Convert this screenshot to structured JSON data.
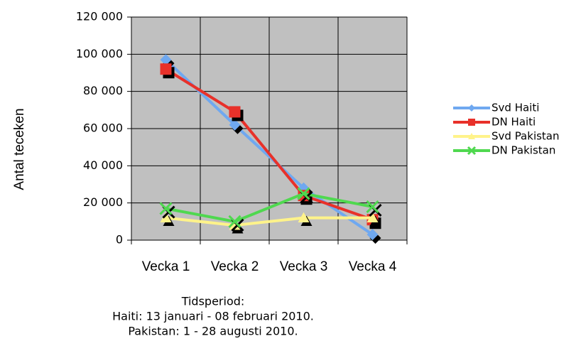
{
  "chart_data": {
    "type": "line",
    "ylabel": "Antal teceken",
    "xlabel": [
      "Tidsperiod:",
      "Haiti: 13 januari - 08 februari 2010.",
      "Pakistan: 1 - 28 augusti 2010."
    ],
    "categories": [
      "Vecka 1",
      "Vecka 2",
      "Vecka 3",
      "Vecka 4"
    ],
    "series": [
      {
        "name": "Svd Haiti",
        "color": "#6fa8f0",
        "marker": "diamond",
        "values": [
          97000,
          62000,
          28000,
          3000
        ]
      },
      {
        "name": "DN Haiti",
        "color": "#e8312a",
        "marker": "square",
        "values": [
          92000,
          69000,
          24000,
          11000
        ]
      },
      {
        "name": "Svd Pakistan",
        "color": "#fff38a",
        "marker": "triangle",
        "values": [
          12000,
          8000,
          12000,
          12000
        ]
      },
      {
        "name": "DN Pakistan",
        "color": "#4fd84f",
        "marker": "x",
        "values": [
          17000,
          10000,
          25000,
          18000
        ]
      }
    ],
    "ylim": [
      0,
      120000
    ],
    "yticks": [
      0,
      {
        "value": 20000,
        "label": "20 000"
      },
      {
        "value": 40000,
        "label": "40 000"
      },
      {
        "value": 60000,
        "label": "60 000"
      },
      {
        "value": 80000,
        "label": "80 000"
      },
      {
        "value": 100000,
        "label": "100 000"
      },
      {
        "value": 120000,
        "label": "120 000"
      }
    ],
    "grid": true,
    "legend": "right"
  }
}
